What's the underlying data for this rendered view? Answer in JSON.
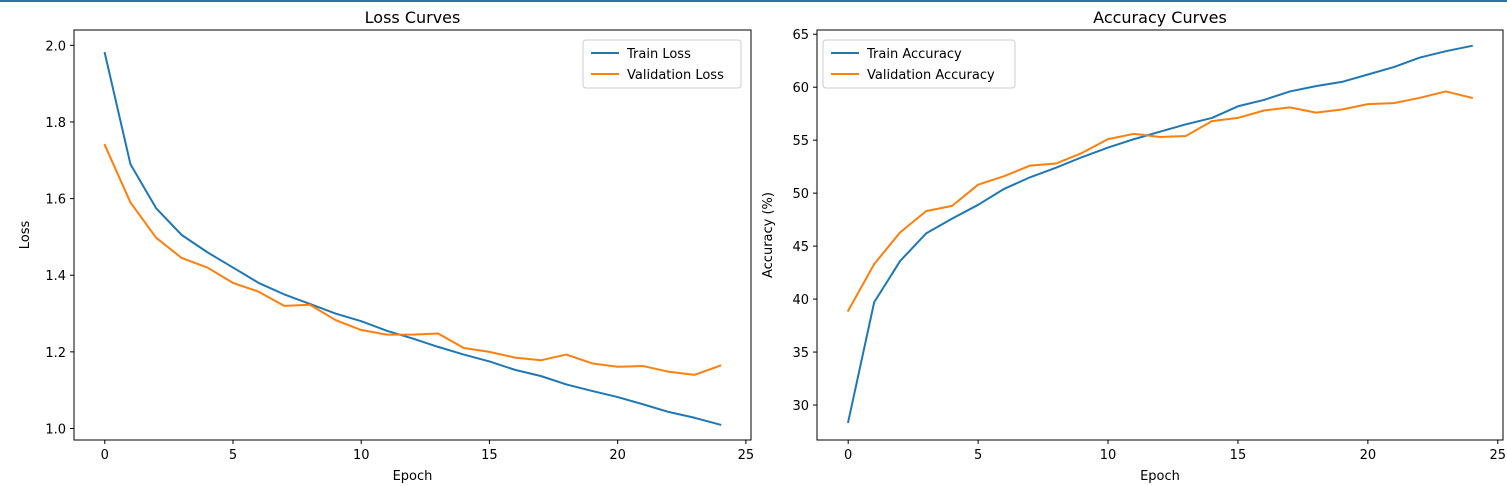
{
  "chart_data": [
    {
      "type": "line",
      "title": "Loss Curves",
      "xlabel": "Epoch",
      "ylabel": "Loss",
      "xlim": [
        -1.2,
        25.2
      ],
      "ylim": [
        0.97,
        2.04
      ],
      "xticks": [
        0,
        5,
        10,
        15,
        20,
        25
      ],
      "yticks": [
        1.0,
        1.2,
        1.4,
        1.6,
        1.8,
        2.0
      ],
      "ytick_labels": [
        "1.0",
        "1.2",
        "1.4",
        "1.6",
        "1.8",
        "2.0"
      ],
      "grid": false,
      "legend_position": "top-right",
      "x": [
        0,
        1,
        2,
        3,
        4,
        5,
        6,
        7,
        8,
        9,
        10,
        11,
        12,
        13,
        14,
        15,
        16,
        17,
        18,
        19,
        20,
        21,
        22,
        23,
        24
      ],
      "series": [
        {
          "name": "Train Loss",
          "color": "#1f77b4",
          "values": [
            1.98,
            1.69,
            1.575,
            1.505,
            1.46,
            1.42,
            1.38,
            1.35,
            1.325,
            1.3,
            1.28,
            1.255,
            1.235,
            1.213,
            1.193,
            1.175,
            1.153,
            1.137,
            1.115,
            1.098,
            1.082,
            1.063,
            1.043,
            1.028,
            1.01
          ]
        },
        {
          "name": "Validation Loss",
          "color": "#ff7f0e",
          "values": [
            1.74,
            1.59,
            1.498,
            1.445,
            1.42,
            1.38,
            1.357,
            1.32,
            1.323,
            1.283,
            1.257,
            1.245,
            1.245,
            1.248,
            1.21,
            1.2,
            1.185,
            1.178,
            1.193,
            1.17,
            1.161,
            1.163,
            1.148,
            1.14,
            1.164
          ]
        }
      ]
    },
    {
      "type": "line",
      "title": "Accuracy Curves",
      "xlabel": "Epoch",
      "ylabel": "Accuracy (%)",
      "xlim": [
        -1.2,
        25.2
      ],
      "ylim": [
        26.7,
        65.4
      ],
      "xticks": [
        0,
        5,
        10,
        15,
        20,
        25
      ],
      "yticks": [
        30,
        35,
        40,
        45,
        50,
        55,
        60,
        65
      ],
      "ytick_labels": [
        "30",
        "35",
        "40",
        "45",
        "50",
        "55",
        "60",
        "65"
      ],
      "grid": false,
      "legend_position": "top-left",
      "x": [
        0,
        1,
        2,
        3,
        4,
        5,
        6,
        7,
        8,
        9,
        10,
        11,
        12,
        13,
        14,
        15,
        16,
        17,
        18,
        19,
        20,
        21,
        22,
        23,
        24
      ],
      "series": [
        {
          "name": "Train Accuracy",
          "color": "#1f77b4",
          "values": [
            28.4,
            39.7,
            43.6,
            46.2,
            47.6,
            48.9,
            50.4,
            51.5,
            52.4,
            53.4,
            54.3,
            55.1,
            55.8,
            56.5,
            57.1,
            58.2,
            58.8,
            59.6,
            60.1,
            60.5,
            61.2,
            61.9,
            62.8,
            63.4,
            63.9
          ]
        },
        {
          "name": "Validation Accuracy",
          "color": "#ff7f0e",
          "values": [
            38.9,
            43.3,
            46.3,
            48.3,
            48.8,
            50.8,
            51.6,
            52.6,
            52.8,
            53.8,
            55.1,
            55.6,
            55.3,
            55.4,
            56.8,
            57.1,
            57.8,
            58.1,
            57.6,
            57.9,
            58.4,
            58.5,
            59.0,
            59.6,
            59.0
          ]
        }
      ]
    }
  ]
}
